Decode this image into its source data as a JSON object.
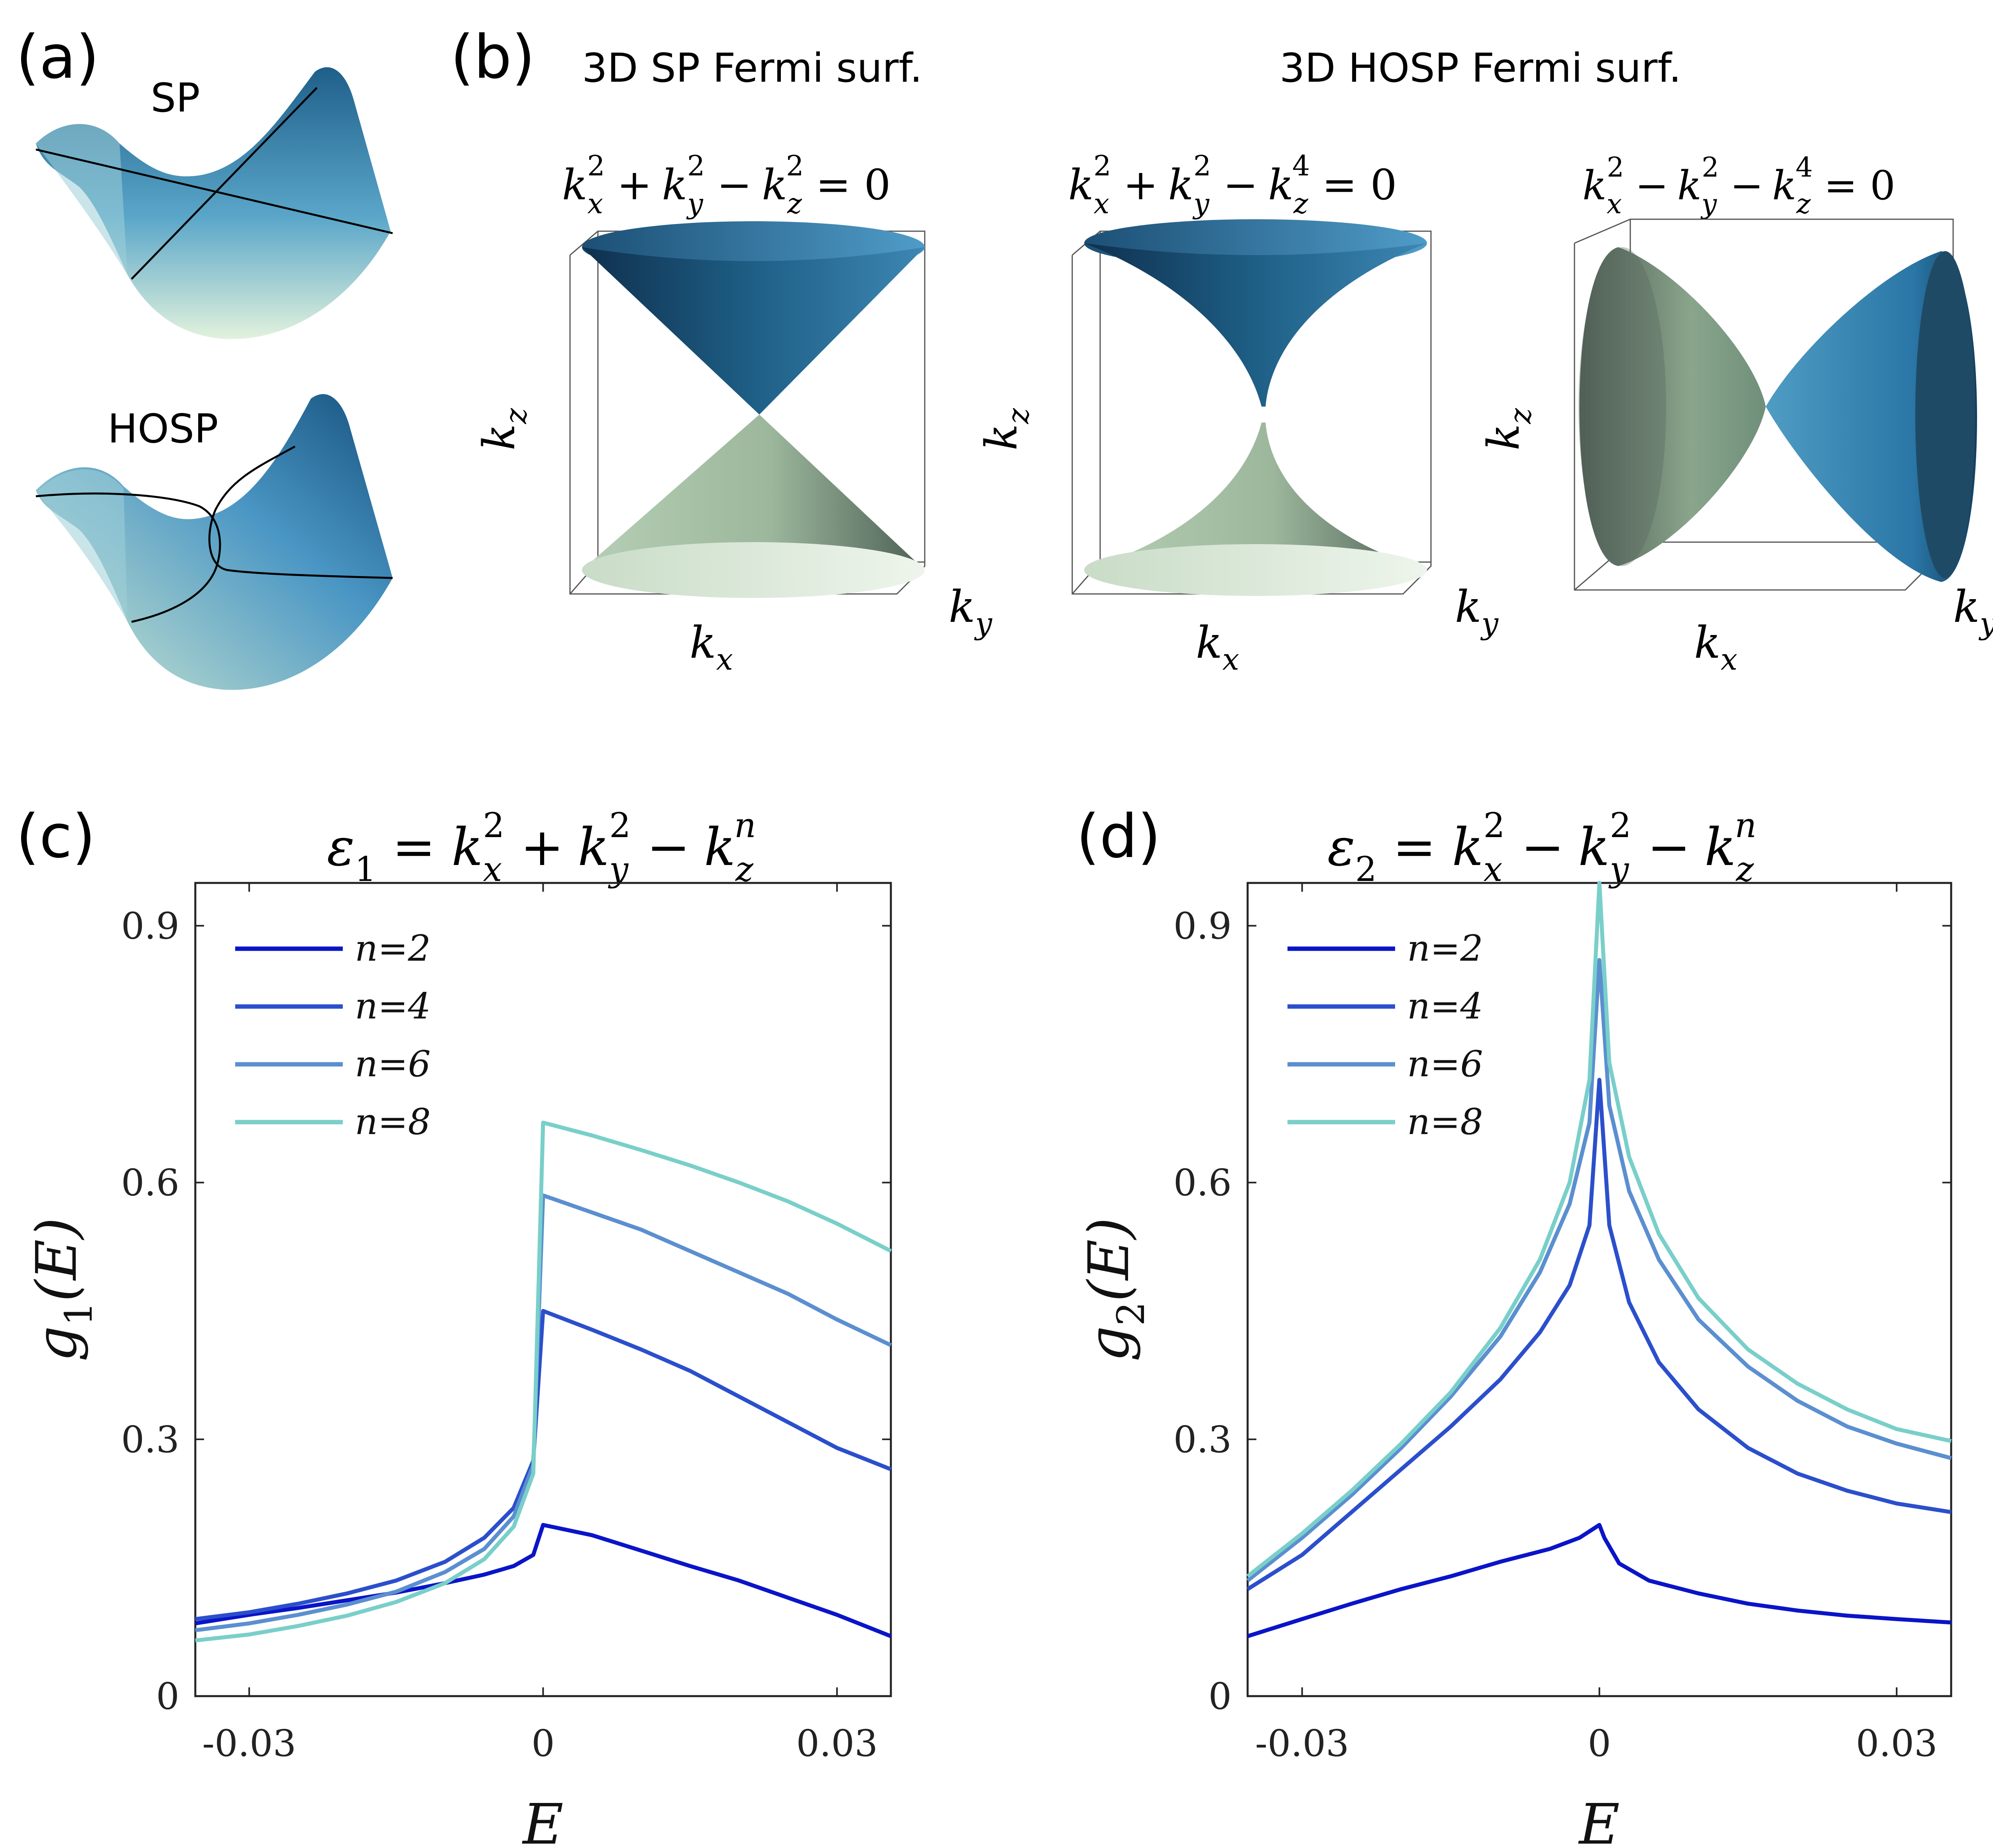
{
  "panels": {
    "a": {
      "label": "(a)",
      "top_caption": "SP",
      "bottom_caption": "HOSP"
    },
    "b": {
      "label": "(b)",
      "header_sp": "3D SP Fermi surf.",
      "header_hosp": "3D HOSP Fermi surf.",
      "cells": [
        {
          "eq": {
            "kx": "k",
            "kx_sub": "x",
            "kx_sup": "2",
            "op1": "+",
            "ky": "k",
            "ky_sub": "y",
            "ky_sup": "2",
            "op2": "−",
            "kz": "k",
            "kz_sub": "z",
            "kz_sup": "2",
            "rhs": "= 0"
          },
          "axis_x": "k",
          "axis_x_sub": "x",
          "axis_y": "k",
          "axis_y_sub": "y",
          "axis_z": "k",
          "axis_z_sub": "z"
        },
        {
          "eq": {
            "kx": "k",
            "kx_sub": "x",
            "kx_sup": "2",
            "op1": "+",
            "ky": "k",
            "ky_sub": "y",
            "ky_sup": "2",
            "op2": "−",
            "kz": "k",
            "kz_sub": "z",
            "kz_sup": "4",
            "rhs": "= 0"
          },
          "axis_x": "k",
          "axis_x_sub": "x",
          "axis_y": "k",
          "axis_y_sub": "y",
          "axis_z": "k",
          "axis_z_sub": "z"
        },
        {
          "eq": {
            "kx": "k",
            "kx_sub": "x",
            "kx_sup": "2",
            "op1": "−",
            "ky": "k",
            "ky_sub": "y",
            "ky_sup": "2",
            "op2": "−",
            "kz": "k",
            "kz_sub": "z",
            "kz_sup": "4",
            "rhs": "= 0"
          },
          "axis_x": "k",
          "axis_x_sub": "x",
          "axis_y": "k",
          "axis_y_sub": "y",
          "axis_z": "k",
          "axis_z_sub": "z"
        }
      ]
    }
  },
  "colors": {
    "n2": "#0a14c8",
    "n4": "#2b4fcc",
    "n6": "#5b8fd0",
    "n8": "#79cfc9",
    "surface_dark": "#1f5f8a",
    "surface_light": "#d3e8d2"
  },
  "chart_data": [
    {
      "id": "c",
      "type": "line",
      "label": "(c)",
      "title": {
        "prefix": "ε",
        "prefix_sub": "1",
        "eq": "=",
        "t1": "k",
        "t1_sub": "x",
        "t1_sup": "2",
        "op1": "+",
        "t2": "k",
        "t2_sub": "y",
        "t2_sup": "2",
        "op2": "−",
        "t3": "k",
        "t3_sub": "z",
        "t3_sup": "n"
      },
      "xlabel": "E",
      "ylabel": {
        "main": "g",
        "sub": "1",
        "arg": "(E)"
      },
      "xlim": [
        -0.0355,
        0.0355
      ],
      "ylim": [
        0,
        0.95
      ],
      "xticks": [
        -0.03,
        0,
        0.03
      ],
      "xtick_labels": [
        "-0.03",
        "0",
        "0.03"
      ],
      "yticks": [
        0,
        0.3,
        0.6,
        0.9
      ],
      "ytick_labels": [
        "0",
        "0.3",
        "0.6",
        "0.9"
      ],
      "series": [
        {
          "name": "n=2",
          "legend": "n=2",
          "color_key": "n2",
          "x": [
            -0.0355,
            -0.03,
            -0.025,
            -0.02,
            -0.015,
            -0.01,
            -0.006,
            -0.003,
            -0.001,
            0,
            0.005,
            0.01,
            0.015,
            0.02,
            0.025,
            0.03,
            0.0355
          ],
          "y": [
            0.085,
            0.095,
            0.103,
            0.112,
            0.121,
            0.132,
            0.142,
            0.152,
            0.165,
            0.2,
            0.188,
            0.17,
            0.152,
            0.135,
            0.115,
            0.095,
            0.07
          ]
        },
        {
          "name": "n=4",
          "legend": "n=4",
          "color_key": "n4",
          "x": [
            -0.0355,
            -0.03,
            -0.025,
            -0.02,
            -0.015,
            -0.01,
            -0.006,
            -0.003,
            -0.001,
            0,
            0.005,
            0.01,
            0.015,
            0.02,
            0.025,
            0.03,
            0.0355
          ],
          "y": [
            0.09,
            0.098,
            0.108,
            0.12,
            0.135,
            0.157,
            0.185,
            0.22,
            0.275,
            0.45,
            0.428,
            0.405,
            0.38,
            0.35,
            0.32,
            0.29,
            0.265
          ]
        },
        {
          "name": "n=6",
          "legend": "n=6",
          "color_key": "n6",
          "x": [
            -0.0355,
            -0.03,
            -0.025,
            -0.02,
            -0.015,
            -0.01,
            -0.006,
            -0.003,
            -0.001,
            0,
            0.005,
            0.01,
            0.015,
            0.02,
            0.025,
            0.03,
            0.0355
          ],
          "y": [
            0.077,
            0.085,
            0.095,
            0.107,
            0.122,
            0.145,
            0.172,
            0.21,
            0.27,
            0.585,
            0.565,
            0.545,
            0.52,
            0.495,
            0.47,
            0.44,
            0.41
          ]
        },
        {
          "name": "n=8",
          "legend": "n=8",
          "color_key": "n8",
          "x": [
            -0.0355,
            -0.03,
            -0.025,
            -0.02,
            -0.015,
            -0.01,
            -0.006,
            -0.003,
            -0.001,
            0,
            0.005,
            0.01,
            0.015,
            0.02,
            0.025,
            0.03,
            0.0355
          ],
          "y": [
            0.065,
            0.072,
            0.082,
            0.094,
            0.11,
            0.132,
            0.16,
            0.198,
            0.26,
            0.67,
            0.655,
            0.638,
            0.62,
            0.6,
            0.578,
            0.552,
            0.52
          ]
        }
      ]
    },
    {
      "id": "d",
      "type": "line",
      "label": "(d)",
      "title": {
        "prefix": "ε",
        "prefix_sub": "2",
        "eq": "=",
        "t1": "k",
        "t1_sub": "x",
        "t1_sup": "2",
        "op1": "−",
        "t2": "k",
        "t2_sub": "y",
        "t2_sup": "2",
        "op2": "−",
        "t3": "k",
        "t3_sub": "z",
        "t3_sup": "n"
      },
      "xlabel": "E",
      "ylabel": {
        "main": "g",
        "sub": "2",
        "arg": "(E)"
      },
      "xlim": [
        -0.0355,
        0.0355
      ],
      "ylim": [
        0,
        0.95
      ],
      "xticks": [
        -0.03,
        0,
        0.03
      ],
      "xtick_labels": [
        "-0.03",
        "0",
        "0.03"
      ],
      "yticks": [
        0,
        0.3,
        0.6,
        0.9
      ],
      "ytick_labels": [
        "0",
        "0.3",
        "0.6",
        "0.9"
      ],
      "series": [
        {
          "name": "n=2",
          "legend": "n=2",
          "color_key": "n2",
          "x": [
            -0.0355,
            -0.03,
            -0.025,
            -0.02,
            -0.015,
            -0.01,
            -0.005,
            -0.002,
            0,
            0.0005,
            0.002,
            0.005,
            0.01,
            0.015,
            0.02,
            0.025,
            0.03,
            0.0355
          ],
          "y": [
            0.07,
            0.09,
            0.108,
            0.125,
            0.14,
            0.157,
            0.172,
            0.185,
            0.2,
            0.185,
            0.155,
            0.135,
            0.12,
            0.108,
            0.1,
            0.094,
            0.09,
            0.086
          ]
        },
        {
          "name": "n=4",
          "legend": "n=4",
          "color_key": "n4",
          "x": [
            -0.0355,
            -0.03,
            -0.025,
            -0.02,
            -0.015,
            -0.01,
            -0.006,
            -0.003,
            -0.001,
            0,
            0.001,
            0.003,
            0.006,
            0.01,
            0.015,
            0.02,
            0.025,
            0.03,
            0.0355
          ],
          "y": [
            0.125,
            0.165,
            0.215,
            0.265,
            0.315,
            0.37,
            0.425,
            0.48,
            0.55,
            0.72,
            0.55,
            0.46,
            0.39,
            0.335,
            0.29,
            0.26,
            0.24,
            0.225,
            0.215
          ]
        },
        {
          "name": "n=6",
          "legend": "n=6",
          "color_key": "n6",
          "x": [
            -0.0355,
            -0.03,
            -0.025,
            -0.02,
            -0.015,
            -0.01,
            -0.006,
            -0.003,
            -0.001,
            0,
            0.001,
            0.003,
            0.006,
            0.01,
            0.015,
            0.02,
            0.025,
            0.03,
            0.0355
          ],
          "y": [
            0.135,
            0.185,
            0.235,
            0.29,
            0.35,
            0.42,
            0.495,
            0.575,
            0.67,
            0.86,
            0.69,
            0.59,
            0.51,
            0.44,
            0.385,
            0.345,
            0.315,
            0.295,
            0.278
          ]
        },
        {
          "name": "n=8",
          "legend": "n=8",
          "color_key": "n8",
          "x": [
            -0.0355,
            -0.03,
            -0.025,
            -0.02,
            -0.015,
            -0.01,
            -0.006,
            -0.003,
            -0.001,
            0,
            0.001,
            0.003,
            0.006,
            0.01,
            0.015,
            0.02,
            0.025,
            0.03,
            0.0355
          ],
          "y": [
            0.14,
            0.19,
            0.24,
            0.295,
            0.355,
            0.43,
            0.51,
            0.6,
            0.72,
            0.95,
            0.74,
            0.63,
            0.54,
            0.465,
            0.405,
            0.365,
            0.335,
            0.312,
            0.298
          ]
        }
      ]
    }
  ]
}
